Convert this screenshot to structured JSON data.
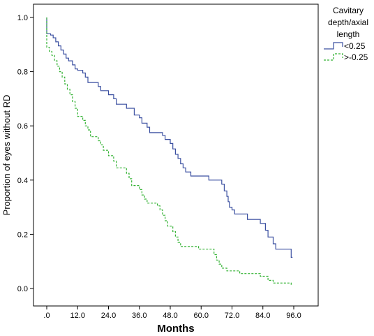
{
  "chart_data": {
    "type": "line",
    "xlabel": "Months",
    "ylabel": "Proportion of eyes without RD",
    "xlim": [
      0,
      96
    ],
    "ylim": [
      0,
      1.0
    ],
    "x_ticks": [
      ".0",
      "12.0",
      "24.0",
      "36.0",
      "48.0",
      "60.0",
      "72.0",
      "84.0",
      "96.0"
    ],
    "y_ticks": [
      "0.0",
      "0.2",
      "0.4",
      "0.6",
      "0.8",
      "1.0"
    ],
    "legend": {
      "title_lines": [
        "Cavitary",
        "depth/axial",
        "length"
      ],
      "position": "top-right, outside plot"
    },
    "grid": false,
    "series": [
      {
        "name": "<0.25",
        "color": "#3a4fa0",
        "style": "solid",
        "step": true,
        "points": [
          [
            0,
            1.0
          ],
          [
            0,
            0.94
          ],
          [
            1.5,
            0.935
          ],
          [
            2.5,
            0.925
          ],
          [
            3.5,
            0.91
          ],
          [
            4.5,
            0.895
          ],
          [
            5.5,
            0.88
          ],
          [
            6.5,
            0.865
          ],
          [
            7.5,
            0.85
          ],
          [
            8.5,
            0.84
          ],
          [
            10,
            0.825
          ],
          [
            11,
            0.81
          ],
          [
            12,
            0.805
          ],
          [
            14,
            0.795
          ],
          [
            15,
            0.78
          ],
          [
            16,
            0.76
          ],
          [
            20,
            0.745
          ],
          [
            21,
            0.73
          ],
          [
            24,
            0.715
          ],
          [
            26,
            0.7
          ],
          [
            27,
            0.68
          ],
          [
            31,
            0.665
          ],
          [
            34,
            0.64
          ],
          [
            36,
            0.63
          ],
          [
            37,
            0.61
          ],
          [
            39,
            0.595
          ],
          [
            40,
            0.575
          ],
          [
            45,
            0.565
          ],
          [
            46,
            0.55
          ],
          [
            48,
            0.535
          ],
          [
            49,
            0.515
          ],
          [
            50,
            0.495
          ],
          [
            51,
            0.48
          ],
          [
            52,
            0.46
          ],
          [
            53,
            0.445
          ],
          [
            54,
            0.43
          ],
          [
            56,
            0.415
          ],
          [
            63,
            0.4
          ],
          [
            68,
            0.385
          ],
          [
            69,
            0.36
          ],
          [
            70,
            0.34
          ],
          [
            70.5,
            0.32
          ],
          [
            71,
            0.3
          ],
          [
            72,
            0.29
          ],
          [
            73,
            0.275
          ],
          [
            78,
            0.255
          ],
          [
            83,
            0.24
          ],
          [
            85,
            0.215
          ],
          [
            86,
            0.19
          ],
          [
            88,
            0.165
          ],
          [
            89,
            0.145
          ],
          [
            95,
            0.145
          ],
          [
            95,
            0.115
          ],
          [
            95.5,
            0.115
          ]
        ]
      },
      {
        "name": ">-0.25",
        "color": "#33b233",
        "style": "dashed",
        "step": true,
        "points": [
          [
            0,
            1.0
          ],
          [
            0,
            0.89
          ],
          [
            1,
            0.875
          ],
          [
            2,
            0.86
          ],
          [
            3,
            0.84
          ],
          [
            4,
            0.82
          ],
          [
            5,
            0.8
          ],
          [
            6,
            0.78
          ],
          [
            7,
            0.755
          ],
          [
            8,
            0.735
          ],
          [
            9,
            0.715
          ],
          [
            10,
            0.69
          ],
          [
            11,
            0.665
          ],
          [
            12,
            0.635
          ],
          [
            14,
            0.62
          ],
          [
            15,
            0.6
          ],
          [
            16,
            0.585
          ],
          [
            17,
            0.56
          ],
          [
            20,
            0.545
          ],
          [
            21,
            0.53
          ],
          [
            22,
            0.51
          ],
          [
            24,
            0.49
          ],
          [
            26,
            0.47
          ],
          [
            27,
            0.445
          ],
          [
            31,
            0.425
          ],
          [
            32,
            0.405
          ],
          [
            33,
            0.38
          ],
          [
            36,
            0.365
          ],
          [
            37,
            0.345
          ],
          [
            38,
            0.33
          ],
          [
            39,
            0.315
          ],
          [
            43,
            0.305
          ],
          [
            44,
            0.29
          ],
          [
            45,
            0.27
          ],
          [
            46,
            0.25
          ],
          [
            47,
            0.23
          ],
          [
            49,
            0.21
          ],
          [
            50,
            0.19
          ],
          [
            51,
            0.17
          ],
          [
            52,
            0.155
          ],
          [
            59,
            0.145
          ],
          [
            65,
            0.125
          ],
          [
            66,
            0.105
          ],
          [
            67,
            0.09
          ],
          [
            68,
            0.075
          ],
          [
            70,
            0.065
          ],
          [
            75,
            0.055
          ],
          [
            83,
            0.045
          ],
          [
            86,
            0.03
          ],
          [
            88,
            0.02
          ],
          [
            95,
            0.015
          ],
          [
            95.5,
            0.015
          ]
        ]
      }
    ]
  }
}
